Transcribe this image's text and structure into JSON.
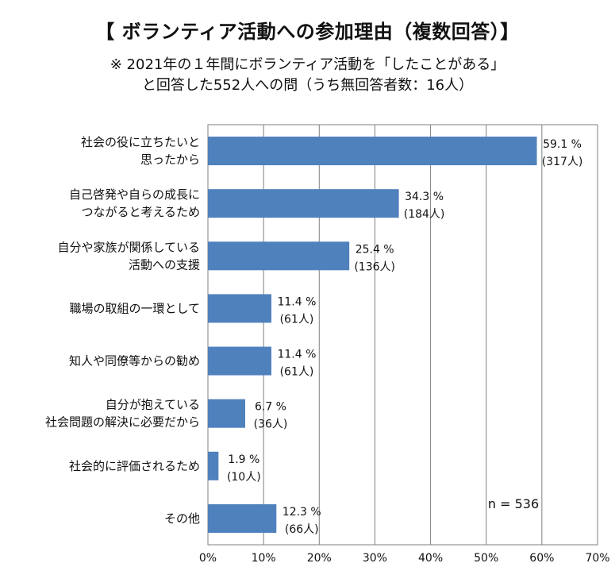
{
  "title": "【 ボランティア活動への参加理由（複数回答）】",
  "subtitle_line1": "※ 2021年の１年間にボランティア活動を「したことがある」",
  "subtitle_line2": "と回答した552人への問（うち無回答者数：16人）",
  "chart_data": {
    "type": "bar",
    "orientation": "horizontal",
    "categories": [
      [
        "社会の役に立ちたいと",
        "思ったから"
      ],
      [
        "自己啓発や自らの成長に",
        "つながると考えるため"
      ],
      [
        "自分や家族が関係している",
        "活動への支援"
      ],
      [
        "職場の取組の一環として"
      ],
      [
        "知人や同僚等からの勧め"
      ],
      [
        "自分が抱えている",
        "社会問題の解決に必要だから"
      ],
      [
        "社会的に評価されるため"
      ],
      [
        "その他"
      ]
    ],
    "values": [
      59.1,
      34.3,
      25.4,
      11.4,
      11.4,
      6.7,
      1.9,
      12.3
    ],
    "value_labels": [
      "59.1 %",
      "34.3 %",
      "25.4 %",
      "11.4 %",
      "11.4 %",
      "6.7 %",
      "1.9 %",
      "12.3 %"
    ],
    "count_labels": [
      "(317人)",
      "(184人)",
      "(136人)",
      "(61人)",
      "(61人)",
      "(36人)",
      "(10人)",
      "(66人)"
    ],
    "xlim": [
      0,
      70
    ],
    "xticks": [
      "0%",
      "10%",
      "20%",
      "30%",
      "40%",
      "50%",
      "60%",
      "70%"
    ],
    "grid": true,
    "bar_color": "#4f81bd",
    "annotation": "n = 536"
  }
}
